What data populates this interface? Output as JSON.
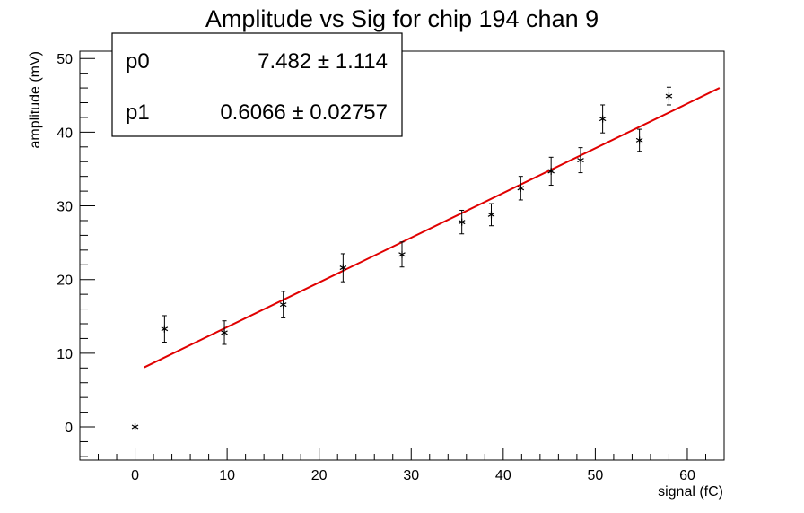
{
  "chart_data": {
    "type": "scatter",
    "title": "Amplitude vs Sig for chip 194 chan 9",
    "xlabel": "signal (fC)",
    "ylabel": "amplitude (mV)",
    "xlim": [
      -6,
      64
    ],
    "ylim": [
      -4.5,
      51
    ],
    "x_ticks": [
      0,
      10,
      20,
      30,
      40,
      50,
      60
    ],
    "y_ticks": [
      0,
      10,
      20,
      30,
      40,
      50
    ],
    "grid": false,
    "series": [
      {
        "marker": "star",
        "color": "#000000",
        "points": [
          {
            "x": 0.0,
            "y": 0.0,
            "err": 0.0
          },
          {
            "x": 3.2,
            "y": 13.3,
            "err": 1.8
          },
          {
            "x": 9.7,
            "y": 12.8,
            "err": 1.6
          },
          {
            "x": 16.1,
            "y": 16.6,
            "err": 1.8
          },
          {
            "x": 22.6,
            "y": 21.6,
            "err": 1.9
          },
          {
            "x": 29.0,
            "y": 23.4,
            "err": 1.7
          },
          {
            "x": 35.5,
            "y": 27.8,
            "err": 1.6
          },
          {
            "x": 38.7,
            "y": 28.8,
            "err": 1.5
          },
          {
            "x": 41.9,
            "y": 32.4,
            "err": 1.6
          },
          {
            "x": 45.2,
            "y": 34.7,
            "err": 1.9
          },
          {
            "x": 48.4,
            "y": 36.2,
            "err": 1.7
          },
          {
            "x": 50.8,
            "y": 41.8,
            "err": 1.9
          },
          {
            "x": 54.8,
            "y": 38.9,
            "err": 1.5
          },
          {
            "x": 58.0,
            "y": 44.9,
            "err": 1.2
          }
        ]
      }
    ],
    "fit": {
      "color": "#e00000",
      "x_range": [
        1.0,
        63.5
      ],
      "p0": 7.482,
      "p1": 0.6066
    },
    "stats_box": {
      "placement": "top-left",
      "rows": [
        {
          "label": "p0",
          "value": "7.482 ± 1.114"
        },
        {
          "label": "p1",
          "value": "0.6066 ± 0.02757"
        }
      ]
    }
  }
}
